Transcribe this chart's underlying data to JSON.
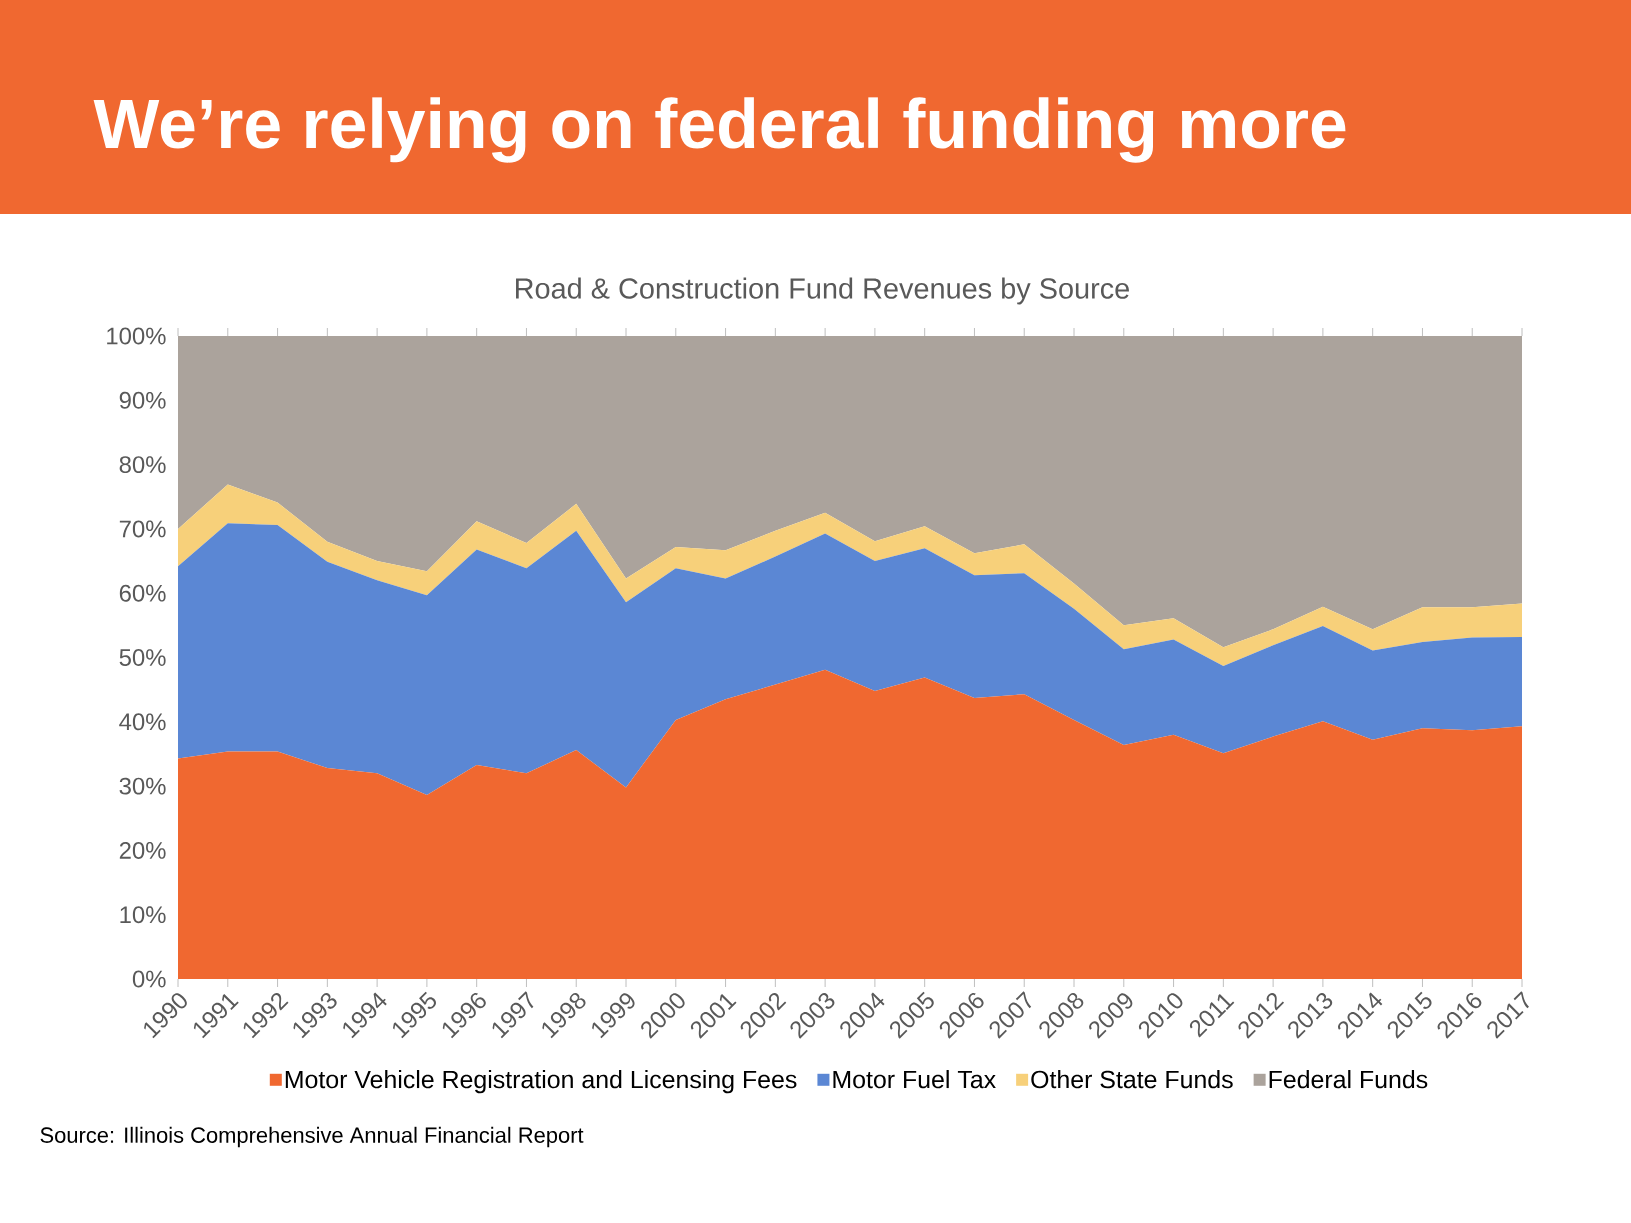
{
  "chart_data": {
    "type": "area",
    "stacked": true,
    "title": "We’re relying on federal funding more",
    "subtitle": "Road & Construction Fund Revenues by Source",
    "categories": [
      "1990",
      "1991",
      "1992",
      "1993",
      "1994",
      "1995",
      "1996",
      "1997",
      "1998",
      "1999",
      "2000",
      "2001",
      "2002",
      "2003",
      "2004",
      "2005",
      "2006",
      "2007",
      "2008",
      "2009",
      "2010",
      "2011",
      "2012",
      "2013",
      "2014",
      "2015",
      "2016",
      "2017"
    ],
    "series": [
      {
        "name": "Motor Vehicle Registration and Licensing Fees",
        "color": "#f06830",
        "values": [
          34.3,
          35.4,
          35.4,
          32.8,
          32.0,
          28.6,
          33.3,
          32.0,
          35.6,
          29.8,
          40.3,
          43.5,
          45.8,
          48.1,
          44.8,
          46.9,
          43.7,
          44.3,
          40.3,
          36.4,
          38.0,
          35.1,
          37.7,
          40.1,
          37.2,
          39.0,
          38.7,
          39.3
        ]
      },
      {
        "name": "Motor Fuel Tax",
        "color": "#5b87d4",
        "values": [
          29.9,
          35.5,
          35.2,
          32.1,
          30.0,
          31.1,
          33.5,
          31.9,
          34.1,
          28.8,
          23.6,
          18.8,
          19.9,
          21.2,
          20.2,
          20.1,
          19.1,
          18.8,
          17.3,
          14.9,
          14.8,
          13.6,
          14.2,
          14.8,
          13.9,
          13.4,
          14.4,
          13.9
        ]
      },
      {
        "name": "Other State Funds",
        "color": "#f7d07a",
        "values": [
          5.8,
          6.0,
          3.5,
          3.1,
          3.0,
          3.7,
          4.4,
          3.9,
          4.2,
          3.7,
          3.3,
          4.4,
          4.0,
          3.2,
          3.1,
          3.4,
          3.4,
          4.5,
          3.9,
          3.7,
          3.3,
          2.9,
          2.5,
          3.0,
          3.3,
          5.4,
          4.7,
          5.2
        ]
      },
      {
        "name": "Federal Funds",
        "color": "#aba39c",
        "values": [
          30.0,
          23.1,
          25.9,
          32.0,
          35.0,
          36.6,
          28.8,
          32.2,
          26.1,
          37.7,
          32.8,
          33.3,
          30.3,
          27.5,
          31.9,
          29.6,
          33.8,
          32.4,
          38.5,
          45.0,
          43.9,
          48.4,
          45.6,
          42.1,
          45.6,
          42.2,
          42.2,
          41.6
        ]
      }
    ],
    "ylim": [
      0,
      100
    ],
    "yticks": [
      {
        "value": 0,
        "label": "0%"
      },
      {
        "value": 10,
        "label": "10%"
      },
      {
        "value": 20,
        "label": "20%"
      },
      {
        "value": 30,
        "label": "30%"
      },
      {
        "value": 40,
        "label": "40%"
      },
      {
        "value": 50,
        "label": "50%"
      },
      {
        "value": 60,
        "label": "60%"
      },
      {
        "value": 70,
        "label": "70%"
      },
      {
        "value": 80,
        "label": "80%"
      },
      {
        "value": 90,
        "label": "90%"
      },
      {
        "value": 100,
        "label": "100%"
      }
    ],
    "legend": "bottom",
    "annotations": [
      "Source: Illinois Comprehensive Annual Financial Report"
    ]
  }
}
